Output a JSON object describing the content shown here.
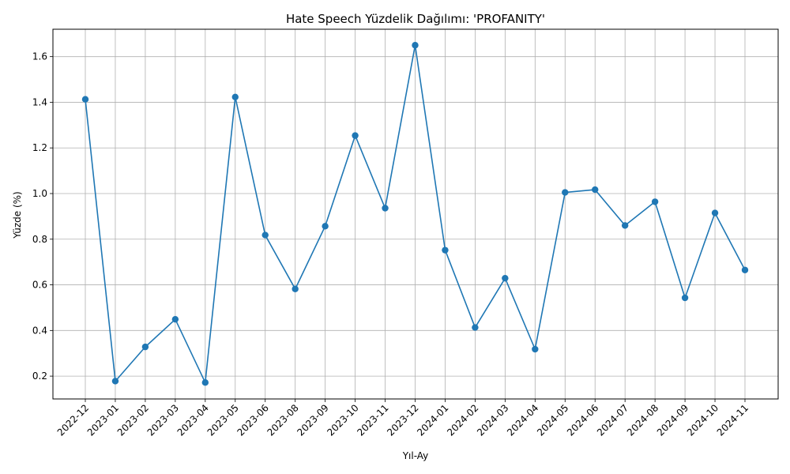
{
  "chart_data": {
    "type": "line",
    "title": "Hate Speech Yüzdelik Dağılımı: 'PROFANITY'",
    "xlabel": "Yıl-Ay",
    "ylabel": "Yüzde (%)",
    "categories": [
      "2022-12",
      "2023-01",
      "2023-02",
      "2023-03",
      "2023-04",
      "2023-05",
      "2023-06",
      "2023-08",
      "2023-09",
      "2023-10",
      "2023-11",
      "2023-12",
      "2024-01",
      "2024-02",
      "2024-03",
      "2024-04",
      "2024-05",
      "2024-06",
      "2024-07",
      "2024-08",
      "2024-09",
      "2024-10",
      "2024-11"
    ],
    "series": [
      {
        "values": [
          1.413,
          0.178,
          0.328,
          0.449,
          0.172,
          1.423,
          0.818,
          0.582,
          0.857,
          1.254,
          0.936,
          1.65,
          0.752,
          0.413,
          0.629,
          0.318,
          1.005,
          1.017,
          0.86,
          0.964,
          0.543,
          0.915,
          0.665
        ],
        "color": "#1f77b4"
      }
    ],
    "ylim": [
      0.1,
      1.72
    ],
    "yticks": [
      0.2,
      0.4,
      0.6,
      0.8,
      1.0,
      1.2,
      1.4,
      1.6
    ],
    "ytick_labels": [
      "0.2",
      "0.4",
      "0.6",
      "0.8",
      "1.0",
      "1.2",
      "1.4",
      "1.6"
    ],
    "grid": true,
    "legend": "none"
  }
}
